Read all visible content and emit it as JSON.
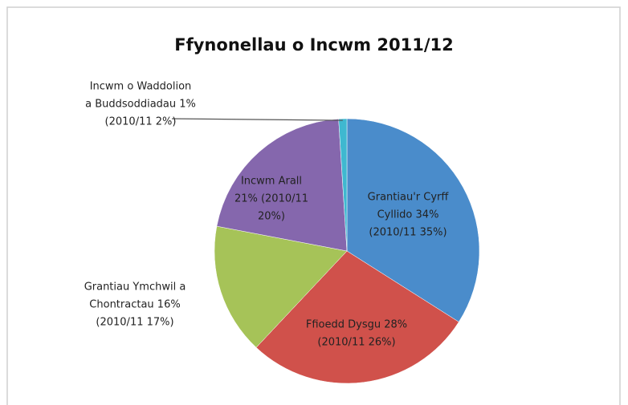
{
  "chart_data": {
    "type": "pie",
    "title": "Ffynonellau o Incwm 2011/12",
    "values": [
      34,
      28,
      16,
      21,
      1
    ],
    "value_labels": [
      [
        "Grantiau'r Cyrff",
        "Cyllido 34%",
        "(2010/11 35%)"
      ],
      [
        "Ffioedd Dysgu 28%",
        "(2010/11 26%)"
      ],
      [
        "Grantiau Ymchwil a",
        "Chontractau 16%",
        "(2010/11 17%)"
      ],
      [
        "Incwm Arall",
        "21% (2010/11",
        "20%)"
      ],
      [
        "Incwm o Waddolion",
        "a Buddsoddiadau 1%",
        "(2010/11 2%)"
      ]
    ],
    "colors": [
      "#4a8ccb",
      "#d0514b",
      "#a6c358",
      "#8567ad",
      "#3fb8d0"
    ]
  }
}
